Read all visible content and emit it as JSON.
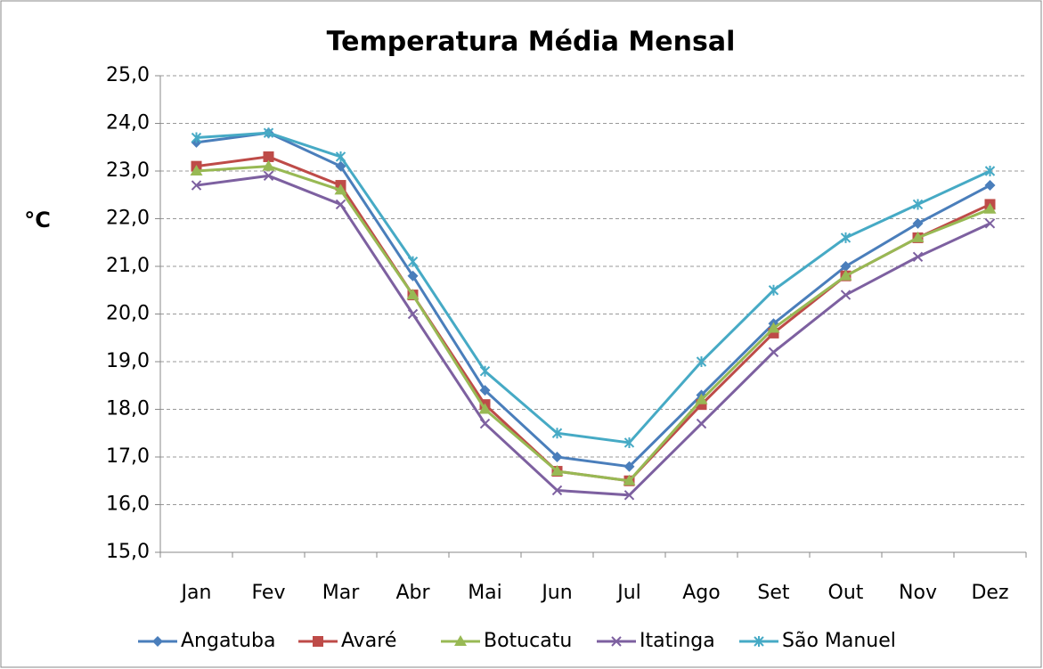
{
  "chart_data": {
    "type": "line",
    "title": "Temperatura Média Mensal",
    "y_label": "°C",
    "categories": [
      "Jan",
      "Fev",
      "Mar",
      "Abr",
      "Mai",
      "Jun",
      "Jul",
      "Ago",
      "Set",
      "Out",
      "Nov",
      "Dez"
    ],
    "series": [
      {
        "name": "Angatuba",
        "color": "#4a7ebb",
        "marker": "diamond",
        "values": [
          23.6,
          23.8,
          23.1,
          20.8,
          18.4,
          17.0,
          16.8,
          18.3,
          19.8,
          21.0,
          21.9,
          22.7
        ]
      },
      {
        "name": "Avaré",
        "color": "#be4b48",
        "marker": "square",
        "values": [
          23.1,
          23.3,
          22.7,
          20.4,
          18.1,
          16.7,
          16.5,
          18.1,
          19.6,
          20.8,
          21.6,
          22.3
        ]
      },
      {
        "name": "Botucatu",
        "color": "#98b954",
        "marker": "triangle",
        "values": [
          23.0,
          23.1,
          22.6,
          20.4,
          18.0,
          16.7,
          16.5,
          18.2,
          19.7,
          20.8,
          21.6,
          22.2
        ]
      },
      {
        "name": "Itatinga",
        "color": "#7d60a0",
        "marker": "x",
        "values": [
          22.7,
          22.9,
          22.3,
          20.0,
          17.7,
          16.3,
          16.2,
          17.7,
          19.2,
          20.4,
          21.2,
          21.9
        ]
      },
      {
        "name": "São Manuel",
        "color": "#46aac5",
        "marker": "star",
        "values": [
          23.7,
          23.8,
          23.3,
          21.1,
          18.8,
          17.5,
          17.3,
          19.0,
          20.5,
          21.6,
          22.3,
          23.0
        ]
      }
    ],
    "ylim": [
      15,
      25
    ],
    "yticks": [
      {
        "value": 15,
        "label": "15,0"
      },
      {
        "value": 16,
        "label": "16,0"
      },
      {
        "value": 17,
        "label": "17,0"
      },
      {
        "value": 18,
        "label": "18,0"
      },
      {
        "value": 19,
        "label": "19,0"
      },
      {
        "value": 20,
        "label": "20,0"
      },
      {
        "value": 21,
        "label": "21,0"
      },
      {
        "value": 22,
        "label": "22,0"
      },
      {
        "value": 23,
        "label": "23,0"
      },
      {
        "value": 24,
        "label": "24,0"
      },
      {
        "value": 25,
        "label": "25,0"
      }
    ],
    "grid": true,
    "legend": "bottom"
  }
}
